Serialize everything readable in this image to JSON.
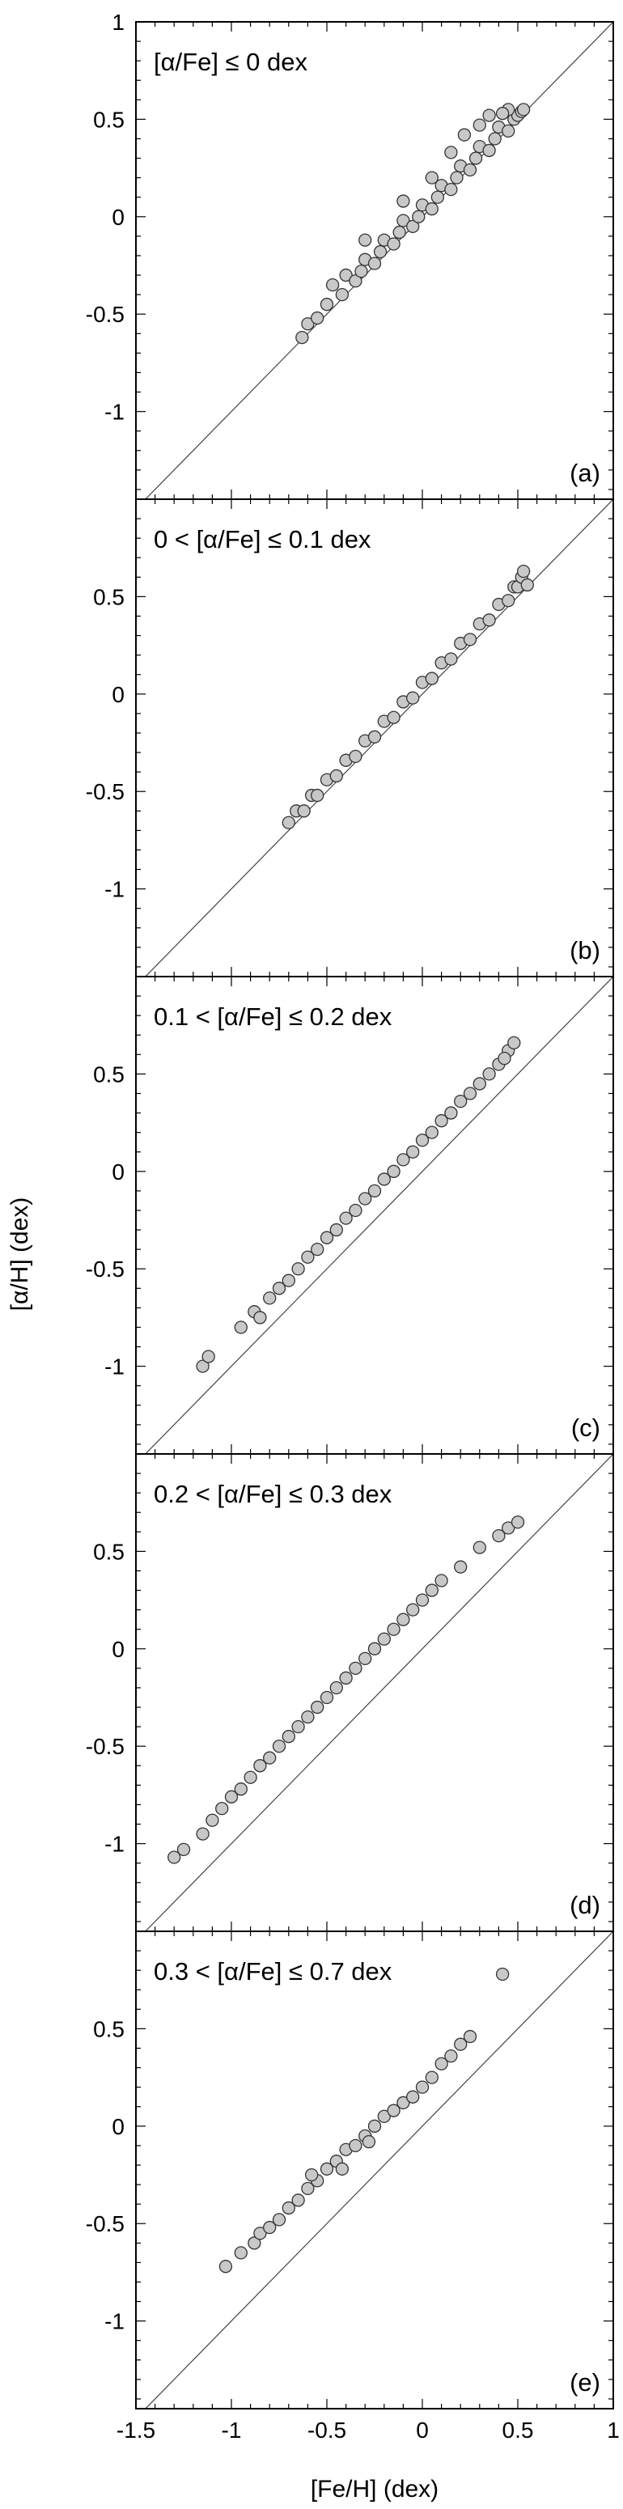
{
  "figure": {
    "xlabel": "[Fe/H] (dex)",
    "ylabel": "[α/H] (dex)"
  },
  "chart_data": [
    {
      "type": "scatter",
      "annotation": "[α/Fe] ≤ 0 dex",
      "panel_label": "(a)",
      "xlim": [
        -1.5,
        1
      ],
      "ylim": [
        -1.45,
        1
      ],
      "yticks": [
        "-1",
        "-0.5",
        "0",
        "0.5",
        "1"
      ],
      "reference_line": "y = x",
      "grid": false,
      "point_color": "#c8c8c8",
      "points": [
        [
          -0.63,
          -0.62
        ],
        [
          -0.6,
          -0.55
        ],
        [
          -0.55,
          -0.52
        ],
        [
          -0.5,
          -0.45
        ],
        [
          -0.47,
          -0.35
        ],
        [
          -0.42,
          -0.4
        ],
        [
          -0.4,
          -0.3
        ],
        [
          -0.35,
          -0.33
        ],
        [
          -0.32,
          -0.28
        ],
        [
          -0.3,
          -0.22
        ],
        [
          -0.25,
          -0.24
        ],
        [
          -0.22,
          -0.18
        ],
        [
          -0.2,
          -0.12
        ],
        [
          -0.15,
          -0.14
        ],
        [
          -0.12,
          -0.08
        ],
        [
          -0.1,
          -0.02
        ],
        [
          -0.05,
          -0.05
        ],
        [
          -0.02,
          0.0
        ],
        [
          0.0,
          0.06
        ],
        [
          0.05,
          0.04
        ],
        [
          0.08,
          0.1
        ],
        [
          0.1,
          0.16
        ],
        [
          0.15,
          0.14
        ],
        [
          0.18,
          0.2
        ],
        [
          0.2,
          0.26
        ],
        [
          0.25,
          0.24
        ],
        [
          0.28,
          0.3
        ],
        [
          0.3,
          0.36
        ],
        [
          0.35,
          0.34
        ],
        [
          0.38,
          0.4
        ],
        [
          0.4,
          0.46
        ],
        [
          0.45,
          0.44
        ],
        [
          0.48,
          0.5
        ],
        [
          0.5,
          0.52
        ],
        [
          0.52,
          0.54
        ],
        [
          0.53,
          0.55
        ],
        [
          0.15,
          0.33
        ],
        [
          0.22,
          0.42
        ],
        [
          0.05,
          0.2
        ],
        [
          0.45,
          0.55
        ],
        [
          0.3,
          0.47
        ],
        [
          -0.3,
          -0.12
        ],
        [
          -0.1,
          0.08
        ],
        [
          0.35,
          0.52
        ],
        [
          0.42,
          0.53
        ]
      ]
    },
    {
      "type": "scatter",
      "annotation": "0 < [α/Fe] ≤ 0.1 dex",
      "panel_label": "(b)",
      "xlim": [
        -1.5,
        1
      ],
      "ylim": [
        -1.45,
        1
      ],
      "yticks": [
        "-1",
        "-0.5",
        "0",
        "0.5"
      ],
      "reference_line": "y = x",
      "grid": false,
      "point_color": "#c8c8c8",
      "points": [
        [
          -0.7,
          -0.66
        ],
        [
          -0.66,
          -0.6
        ],
        [
          -0.62,
          -0.6
        ],
        [
          -0.58,
          -0.52
        ],
        [
          -0.55,
          -0.52
        ],
        [
          -0.5,
          -0.44
        ],
        [
          -0.45,
          -0.42
        ],
        [
          -0.4,
          -0.34
        ],
        [
          -0.35,
          -0.32
        ],
        [
          -0.3,
          -0.24
        ],
        [
          -0.25,
          -0.22
        ],
        [
          -0.2,
          -0.14
        ],
        [
          -0.15,
          -0.12
        ],
        [
          -0.1,
          -0.04
        ],
        [
          -0.05,
          -0.02
        ],
        [
          0.0,
          0.06
        ],
        [
          0.05,
          0.08
        ],
        [
          0.1,
          0.16
        ],
        [
          0.15,
          0.18
        ],
        [
          0.2,
          0.26
        ],
        [
          0.25,
          0.28
        ],
        [
          0.3,
          0.36
        ],
        [
          0.35,
          0.38
        ],
        [
          0.4,
          0.46
        ],
        [
          0.45,
          0.48
        ],
        [
          0.48,
          0.55
        ],
        [
          0.5,
          0.55
        ],
        [
          0.52,
          0.6
        ],
        [
          0.53,
          0.63
        ],
        [
          0.55,
          0.56
        ]
      ]
    },
    {
      "type": "scatter",
      "annotation": "0.1 < [α/Fe] ≤ 0.2 dex",
      "panel_label": "(c)",
      "xlim": [
        -1.5,
        1
      ],
      "ylim": [
        -1.45,
        1
      ],
      "yticks": [
        "-1",
        "-0.5",
        "0",
        "0.5"
      ],
      "reference_line": "y = x",
      "grid": false,
      "point_color": "#c8c8c8",
      "points": [
        [
          -1.15,
          -1.0
        ],
        [
          -1.12,
          -0.95
        ],
        [
          -0.95,
          -0.8
        ],
        [
          -0.88,
          -0.72
        ],
        [
          -0.85,
          -0.75
        ],
        [
          -0.8,
          -0.65
        ],
        [
          -0.75,
          -0.6
        ],
        [
          -0.7,
          -0.56
        ],
        [
          -0.65,
          -0.5
        ],
        [
          -0.6,
          -0.44
        ],
        [
          -0.55,
          -0.4
        ],
        [
          -0.5,
          -0.34
        ],
        [
          -0.45,
          -0.3
        ],
        [
          -0.4,
          -0.24
        ],
        [
          -0.35,
          -0.2
        ],
        [
          -0.3,
          -0.14
        ],
        [
          -0.25,
          -0.1
        ],
        [
          -0.2,
          -0.04
        ],
        [
          -0.15,
          0.0
        ],
        [
          -0.1,
          0.06
        ],
        [
          -0.05,
          0.1
        ],
        [
          0.0,
          0.16
        ],
        [
          0.05,
          0.2
        ],
        [
          0.1,
          0.26
        ],
        [
          0.15,
          0.3
        ],
        [
          0.2,
          0.36
        ],
        [
          0.25,
          0.4
        ],
        [
          0.3,
          0.45
        ],
        [
          0.35,
          0.5
        ],
        [
          0.4,
          0.55
        ],
        [
          0.45,
          0.62
        ],
        [
          0.48,
          0.66
        ],
        [
          0.43,
          0.58
        ]
      ]
    },
    {
      "type": "scatter",
      "annotation": "0.2 < [α/Fe] ≤ 0.3 dex",
      "panel_label": "(d)",
      "xlim": [
        -1.5,
        1
      ],
      "ylim": [
        -1.45,
        1
      ],
      "yticks": [
        "-1",
        "-0.5",
        "0",
        "0.5"
      ],
      "reference_line": "y = x",
      "grid": false,
      "point_color": "#c8c8c8",
      "points": [
        [
          -1.3,
          -1.07
        ],
        [
          -1.25,
          -1.03
        ],
        [
          -1.15,
          -0.95
        ],
        [
          -1.1,
          -0.88
        ],
        [
          -1.05,
          -0.82
        ],
        [
          -1.0,
          -0.76
        ],
        [
          -0.95,
          -0.72
        ],
        [
          -0.9,
          -0.66
        ],
        [
          -0.85,
          -0.6
        ],
        [
          -0.8,
          -0.56
        ],
        [
          -0.75,
          -0.5
        ],
        [
          -0.7,
          -0.45
        ],
        [
          -0.65,
          -0.4
        ],
        [
          -0.6,
          -0.35
        ],
        [
          -0.55,
          -0.3
        ],
        [
          -0.5,
          -0.25
        ],
        [
          -0.45,
          -0.2
        ],
        [
          -0.4,
          -0.15
        ],
        [
          -0.35,
          -0.1
        ],
        [
          -0.3,
          -0.05
        ],
        [
          -0.25,
          0.0
        ],
        [
          -0.2,
          0.05
        ],
        [
          -0.15,
          0.1
        ],
        [
          -0.1,
          0.15
        ],
        [
          -0.05,
          0.2
        ],
        [
          0.0,
          0.25
        ],
        [
          0.05,
          0.3
        ],
        [
          0.1,
          0.35
        ],
        [
          0.2,
          0.42
        ],
        [
          0.3,
          0.52
        ],
        [
          0.4,
          0.58
        ],
        [
          0.45,
          0.62
        ],
        [
          0.5,
          0.65
        ]
      ]
    },
    {
      "type": "scatter",
      "annotation": "0.3 < [α/Fe] ≤ 0.7 dex",
      "panel_label": "(e)",
      "xlim": [
        -1.5,
        1
      ],
      "ylim": [
        -1.45,
        1
      ],
      "xticks": [
        "-1.5",
        "-1",
        "-0.5",
        "0",
        "0.5",
        "1"
      ],
      "yticks": [
        "-1",
        "-0.5",
        "0",
        "0.5"
      ],
      "reference_line": "y = x",
      "grid": false,
      "point_color": "#c8c8c8",
      "points": [
        [
          -1.03,
          -0.72
        ],
        [
          -0.95,
          -0.65
        ],
        [
          -0.88,
          -0.6
        ],
        [
          -0.85,
          -0.55
        ],
        [
          -0.8,
          -0.52
        ],
        [
          -0.75,
          -0.48
        ],
        [
          -0.7,
          -0.42
        ],
        [
          -0.65,
          -0.38
        ],
        [
          -0.6,
          -0.32
        ],
        [
          -0.55,
          -0.28
        ],
        [
          -0.5,
          -0.22
        ],
        [
          -0.45,
          -0.18
        ],
        [
          -0.4,
          -0.12
        ],
        [
          -0.35,
          -0.1
        ],
        [
          -0.3,
          -0.05
        ],
        [
          -0.25,
          0.0
        ],
        [
          -0.2,
          0.05
        ],
        [
          -0.15,
          0.08
        ],
        [
          -0.1,
          0.12
        ],
        [
          -0.05,
          0.15
        ],
        [
          0.0,
          0.2
        ],
        [
          0.05,
          0.25
        ],
        [
          0.1,
          0.32
        ],
        [
          0.15,
          0.36
        ],
        [
          0.2,
          0.42
        ],
        [
          0.25,
          0.46
        ],
        [
          0.42,
          0.78
        ],
        [
          -0.58,
          -0.25
        ],
        [
          -0.42,
          -0.22
        ],
        [
          -0.28,
          -0.08
        ]
      ]
    }
  ]
}
